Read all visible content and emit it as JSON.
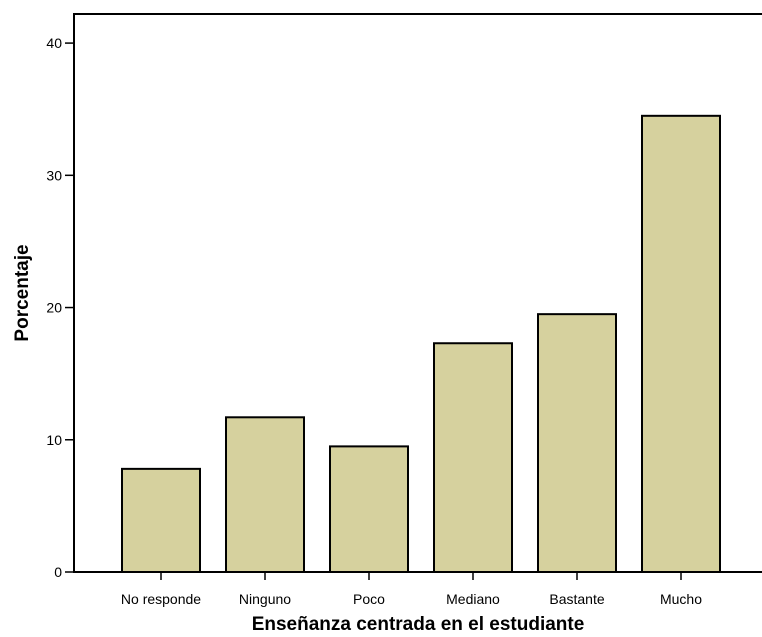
{
  "chart_data": {
    "type": "bar",
    "title": "",
    "xlabel": "Enseñanza centrada en el estudiante",
    "ylabel": "Porcentaje",
    "categories": [
      "No responde",
      "Ninguno",
      "Poco",
      "Mediano",
      "Bastante",
      "Mucho"
    ],
    "values": [
      7.8,
      11.7,
      9.5,
      17.3,
      19.5,
      34.5
    ],
    "ylim": [
      0,
      42.2
    ],
    "yticks": [
      "0",
      "10",
      "20",
      "30",
      "40"
    ],
    "grid": false,
    "legend": "none",
    "bar_color": "#d6d19e",
    "bar_edge_color": "#000000"
  }
}
